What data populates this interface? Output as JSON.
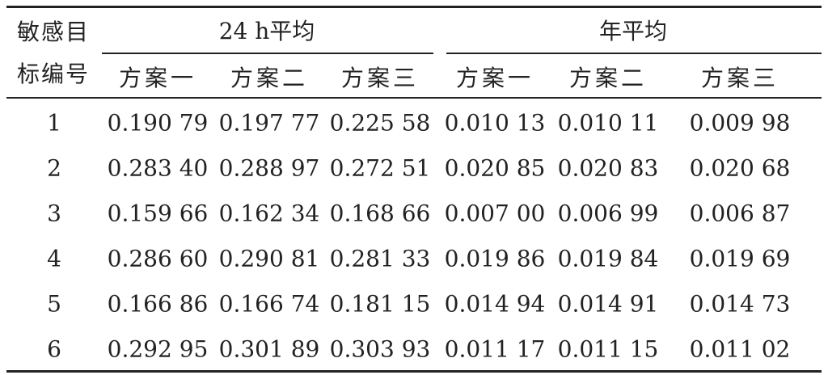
{
  "table": {
    "header": {
      "row_label": "敏感目标编号",
      "groups": [
        "24 h平均",
        "年平均"
      ],
      "subheaders": [
        "方案一",
        "方案二",
        "方案三",
        "方案一",
        "方案二",
        "方案三"
      ]
    },
    "rows": [
      [
        "1",
        "0.190 79",
        "0.197 77",
        "0.225 58",
        "0.010 13",
        "0.010 11",
        "0.009 98"
      ],
      [
        "2",
        "0.283 40",
        "0.288 97",
        "0.272 51",
        "0.020 85",
        "0.020 83",
        "0.020 68"
      ],
      [
        "3",
        "0.159 66",
        "0.162 34",
        "0.168 66",
        "0.007 00",
        "0.006 99",
        "0.006 87"
      ],
      [
        "4",
        "0.286 60",
        "0.290 81",
        "0.281 33",
        "0.019 86",
        "0.019 84",
        "0.019 69"
      ],
      [
        "5",
        "0.166 86",
        "0.166 74",
        "0.181 15",
        "0.014 94",
        "0.014 91",
        "0.014 73"
      ],
      [
        "6",
        "0.292 95",
        "0.301 89",
        "0.303 93",
        "0.011 17",
        "0.011 15",
        "0.011 02"
      ]
    ]
  }
}
